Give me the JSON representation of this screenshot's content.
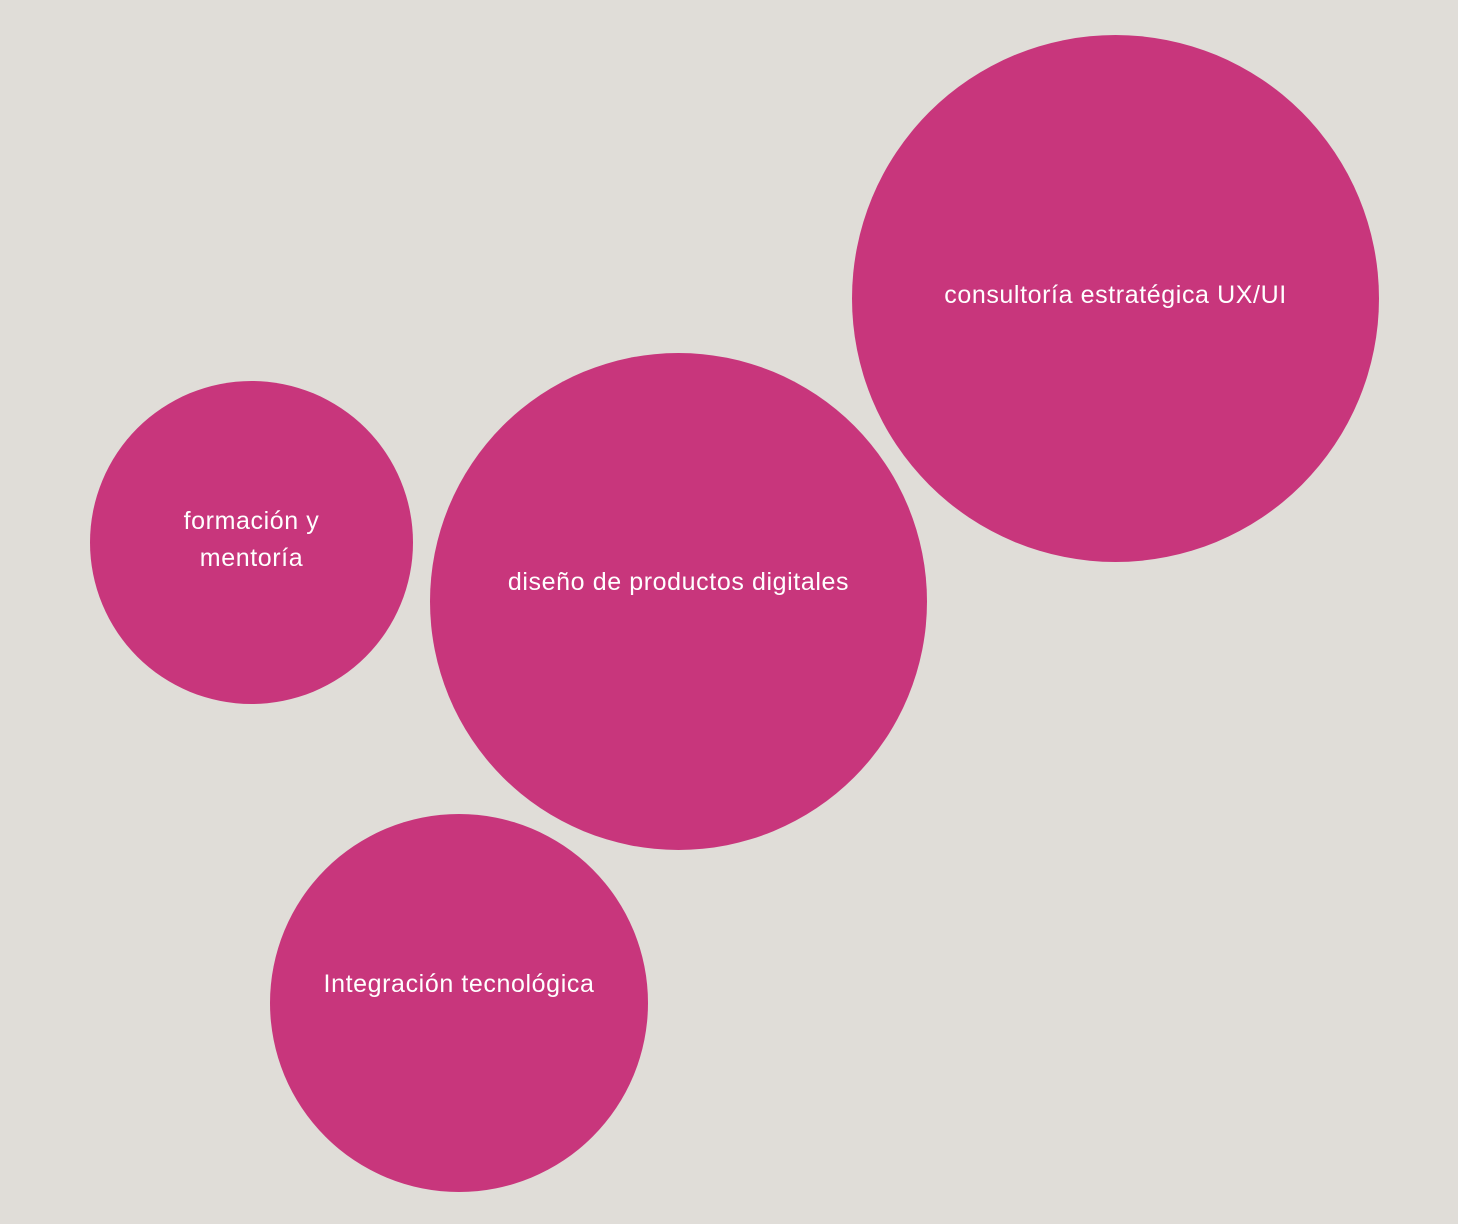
{
  "colors": {
    "background": "#e0ddd8",
    "bubble_fill": "#c8367c",
    "bubble_text": "#ffffff"
  },
  "bubbles": [
    {
      "label": "consultoría estratégica UX/UI"
    },
    {
      "label": "diseño de productos digitales"
    },
    {
      "label": "formación y mentoría"
    },
    {
      "label": "Integración tecnológica"
    }
  ]
}
